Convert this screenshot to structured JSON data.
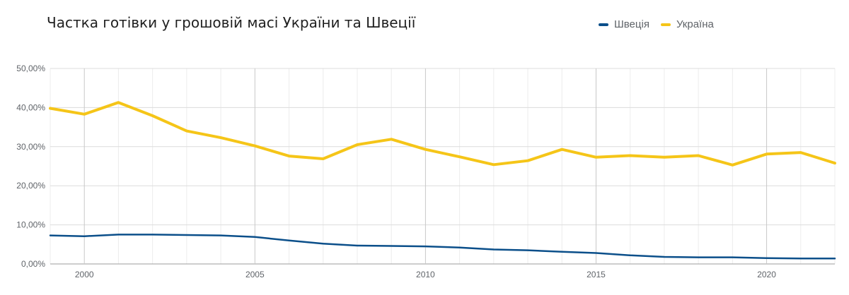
{
  "title": "Частка готівки у грошовій масі України та Швеції",
  "legend": {
    "placement": "top-right",
    "items": [
      {
        "label": "Швеція",
        "color": "#0b4f8a"
      },
      {
        "label": "Україна",
        "color": "#f5c518"
      }
    ]
  },
  "chart_data": {
    "type": "line",
    "title": "Частка готівки у грошовій масі України та Швеції",
    "xlabel": "",
    "ylabel": "",
    "x": [
      1999,
      2000,
      2001,
      2002,
      2003,
      2004,
      2005,
      2006,
      2007,
      2008,
      2009,
      2010,
      2011,
      2012,
      2013,
      2014,
      2015,
      2016,
      2017,
      2018,
      2019,
      2020,
      2021,
      2022
    ],
    "xlim": [
      1999,
      2022
    ],
    "ylim": [
      0,
      50
    ],
    "x_ticks": [
      "2000",
      "2005",
      "2010",
      "2015",
      "2020"
    ],
    "y_ticks": [
      "0,00%",
      "10,00%",
      "20,00%",
      "30,00%",
      "40,00%",
      "50,00%"
    ],
    "grid": true,
    "series": [
      {
        "name": "Швеція",
        "color": "#0b4f8a",
        "values": [
          7.3,
          7.1,
          7.5,
          7.5,
          7.4,
          7.3,
          6.9,
          6.0,
          5.2,
          4.7,
          4.6,
          4.5,
          4.2,
          3.7,
          3.5,
          3.1,
          2.8,
          2.2,
          1.8,
          1.7,
          1.7,
          1.5,
          1.4,
          1.4
        ]
      },
      {
        "name": "Україна",
        "color": "#f5c518",
        "values": [
          39.8,
          38.3,
          41.3,
          37.9,
          34.0,
          32.3,
          30.2,
          27.6,
          26.9,
          30.5,
          31.9,
          29.3,
          27.4,
          25.4,
          26.4,
          29.3,
          27.3,
          27.7,
          27.3,
          27.7,
          25.3,
          28.1,
          28.5,
          25.8
        ]
      }
    ]
  }
}
